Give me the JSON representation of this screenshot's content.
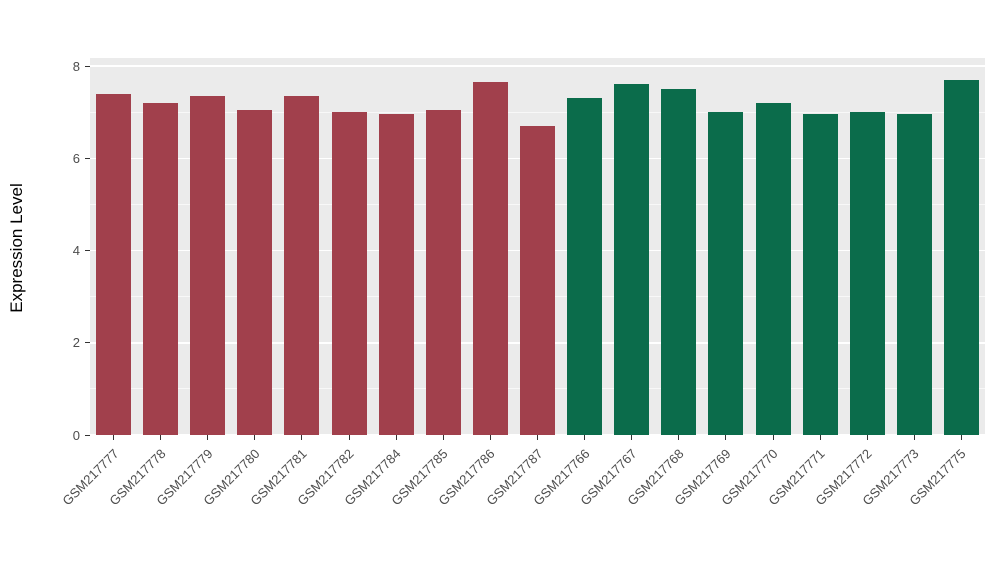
{
  "chart_data": {
    "type": "bar",
    "title": "",
    "xlabel": "",
    "ylabel": "Expression Level",
    "ylim": [
      0,
      8
    ],
    "yticks": [
      0,
      2,
      4,
      6,
      8
    ],
    "yticks_minor": [
      1,
      3,
      5,
      7
    ],
    "legend": "none",
    "plot_background": "#EBEBEB",
    "grid_color": "#FFFFFF",
    "categories": [
      "GSM217777",
      "GSM217778",
      "GSM217779",
      "GSM217780",
      "GSM217781",
      "GSM217782",
      "GSM217784",
      "GSM217785",
      "GSM217786",
      "GSM217787",
      "GSM217766",
      "GSM217767",
      "GSM217768",
      "GSM217769",
      "GSM217770",
      "GSM217771",
      "GSM217772",
      "GSM217773",
      "GSM217775"
    ],
    "values": [
      7.4,
      7.2,
      7.35,
      7.05,
      7.35,
      7.0,
      6.95,
      7.05,
      7.65,
      6.7,
      7.3,
      7.6,
      7.5,
      7.0,
      7.2,
      6.95,
      7.0,
      6.95,
      7.7
    ],
    "groups": [
      "red",
      "red",
      "red",
      "red",
      "red",
      "red",
      "red",
      "red",
      "red",
      "red",
      "green",
      "green",
      "green",
      "green",
      "green",
      "green",
      "green",
      "green",
      "green"
    ],
    "group_colors": {
      "red": "#A1404C",
      "green": "#0B6C4B"
    }
  }
}
